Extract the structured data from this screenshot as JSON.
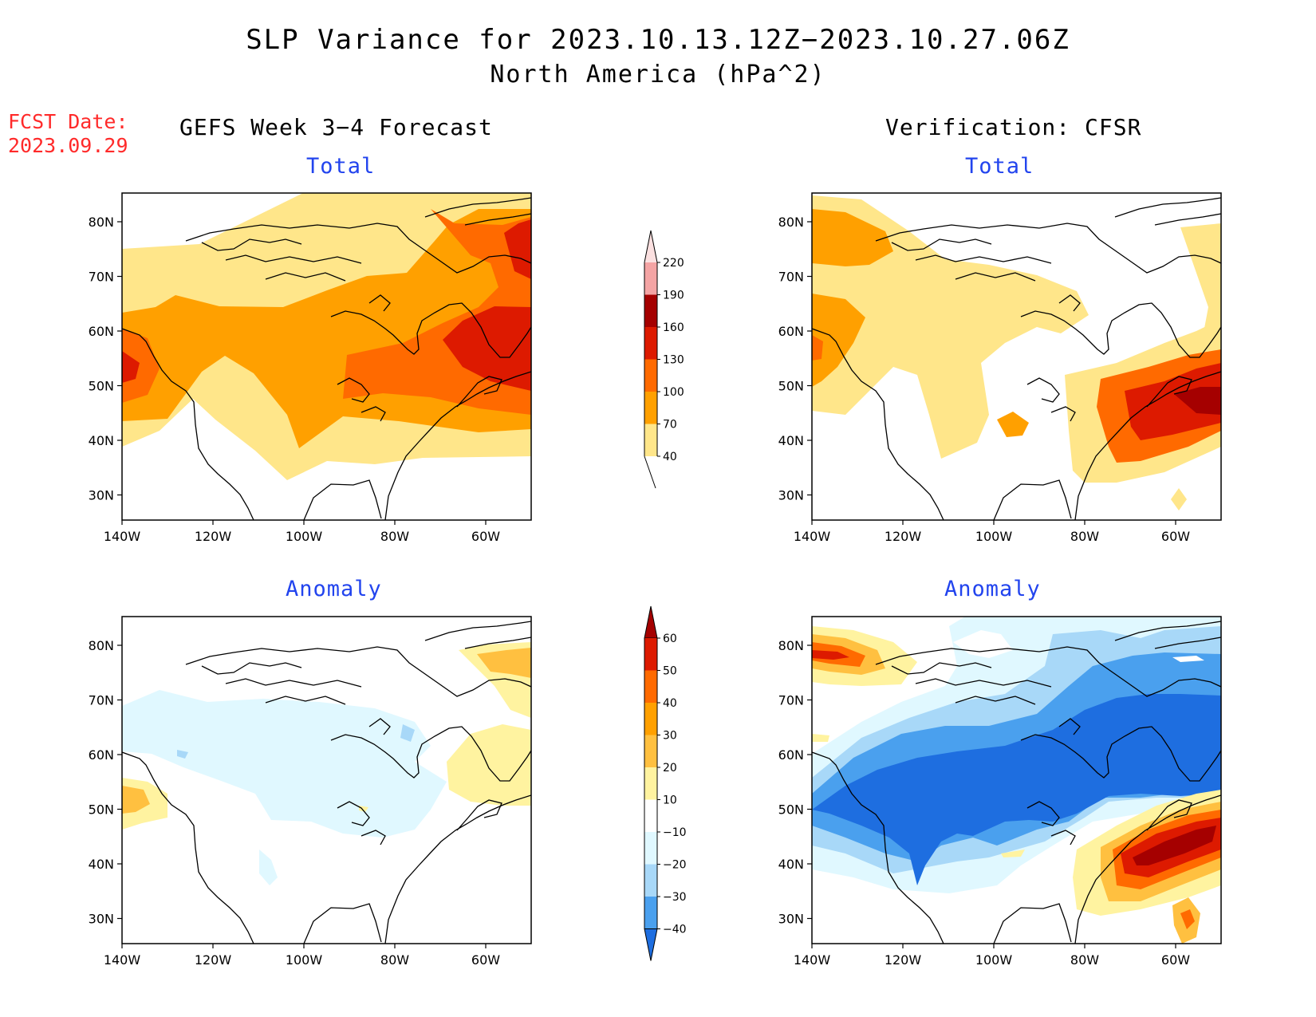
{
  "title": "SLP Variance for 2023.10.13.12Z−2023.10.27.06Z",
  "subtitle": "North America (hPa^2)",
  "fcst_label": "FCST Date:",
  "fcst_date": "2023.09.29",
  "left_header": "GEFS Week 3−4 Forecast",
  "right_header": "Verification: CFSR",
  "panels": {
    "forecast_total": {
      "title": "Total"
    },
    "verification_total": {
      "title": "Total"
    },
    "forecast_anomaly": {
      "title": "Anomaly"
    },
    "verification_anomaly": {
      "title": "Anomaly"
    }
  },
  "axes": {
    "lat_labels": [
      "80N",
      "70N",
      "60N",
      "50N",
      "40N",
      "30N"
    ],
    "lon_labels": [
      "140W",
      "120W",
      "100W",
      "80W",
      "60W"
    ]
  },
  "colorbars": {
    "total": {
      "labels": [
        "220",
        "190",
        "160",
        "130",
        "100",
        "70",
        "40"
      ],
      "colors": [
        "#fbe0e0",
        "#f4a4a4",
        "#a50000",
        "#dd1a00",
        "#ff6a00",
        "#ffa000",
        "#ffe68a"
      ]
    },
    "anomaly": {
      "labels": [
        "60",
        "50",
        "40",
        "30",
        "20",
        "10",
        "−10",
        "−20",
        "−30",
        "−40"
      ],
      "colors": [
        "#a50000",
        "#dd1a00",
        "#ff6a00",
        "#ffa000",
        "#ffc040",
        "#fff3a0",
        "#ffffff",
        "#e0f8ff",
        "#a8d8f8",
        "#4aa0ee",
        "#1e6ee0"
      ]
    }
  }
}
